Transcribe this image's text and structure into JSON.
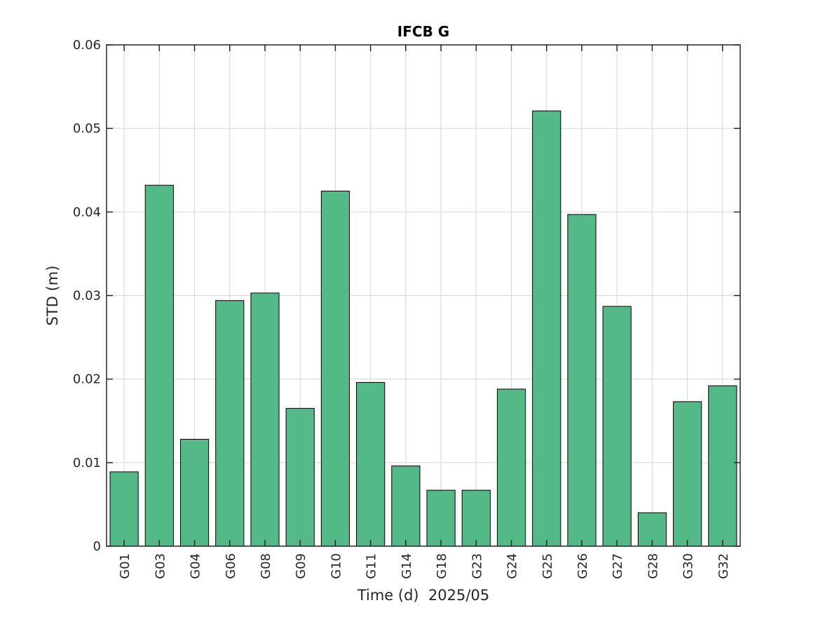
{
  "chart_data": {
    "type": "bar",
    "title": "IFCB G",
    "xlabel": "Time (d)  2025/05",
    "ylabel": "STD (m)",
    "categories": [
      "G01",
      "G03",
      "G04",
      "G06",
      "G08",
      "G09",
      "G10",
      "G11",
      "G14",
      "G18",
      "G23",
      "G24",
      "G25",
      "G26",
      "G27",
      "G28",
      "G30",
      "G32"
    ],
    "values": [
      0.0089,
      0.0432,
      0.0128,
      0.0294,
      0.0303,
      0.0165,
      0.0425,
      0.0196,
      0.0096,
      0.0067,
      0.0067,
      0.0188,
      0.0521,
      0.0397,
      0.0287,
      0.004,
      0.0173,
      0.0192
    ],
    "ylim": [
      0,
      0.06
    ],
    "yticks": [
      "0",
      "0.01",
      "0.02",
      "0.03",
      "0.04",
      "0.05",
      "0.06"
    ],
    "grid": true,
    "bar_color": "#53BA87",
    "edge_color": "#000000"
  }
}
